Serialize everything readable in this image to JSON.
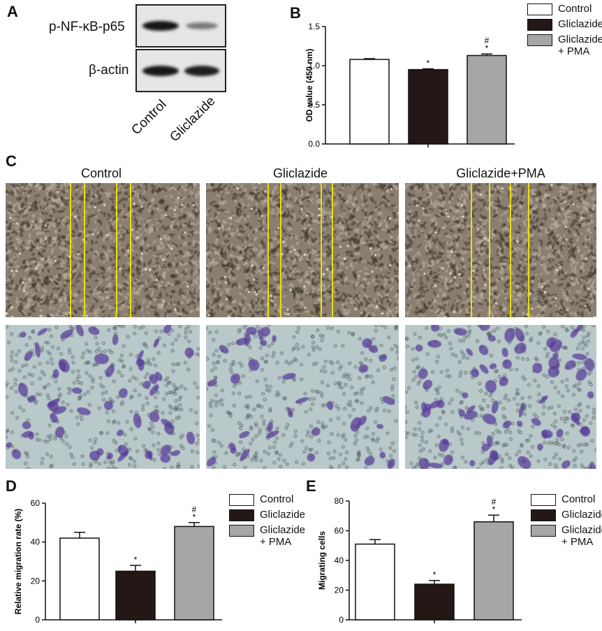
{
  "panels": {
    "a": {
      "letter": "A"
    },
    "b": {
      "letter": "B"
    },
    "c": {
      "letter": "C"
    },
    "d": {
      "letter": "D"
    },
    "e": {
      "letter": "E"
    }
  },
  "western_blot": {
    "rows": [
      "p-NF-κB-p65",
      "β-actin"
    ],
    "lanes": [
      "Control",
      "Gliclazide"
    ]
  },
  "micrographs": {
    "titles": [
      "Control",
      "Gliclazide",
      "Gliclazide+PMA"
    ],
    "colors": {
      "scratch": "#8a7e70",
      "scratch_line": "#e8e000",
      "transwell_bg": "#b9c9c9",
      "cell_stain": "#5a3e9a"
    }
  },
  "legend": {
    "items": [
      "Control",
      "Gliclazide",
      "Gliclazide\n+ PMA"
    ],
    "line1": [
      "Control",
      "Gliclazide",
      "Gliclazide"
    ],
    "line2": [
      "",
      "",
      "+ PMA"
    ],
    "colors": [
      "#ffffff",
      "#231815",
      "#a6a6a6"
    ]
  },
  "chart_data": [
    {
      "panel": "B",
      "type": "bar",
      "categories": [
        "Control",
        "Gliclazide",
        "Gliclazide + PMA"
      ],
      "values": [
        1.08,
        0.95,
        1.13
      ],
      "errors": [
        0.01,
        0.01,
        0.02
      ],
      "ylabel": "OD value (450 nm)",
      "ylim": [
        0,
        1.5
      ],
      "yticks": [
        "0.0",
        "0.5",
        "1.0",
        "1.5"
      ],
      "annotations": [
        "",
        "*",
        "#\n*"
      ]
    },
    {
      "panel": "D",
      "type": "bar",
      "categories": [
        "Control",
        "Gliclazide",
        "Gliclazide + PMA"
      ],
      "values": [
        42,
        25,
        48
      ],
      "errors": [
        3,
        3,
        2
      ],
      "ylabel": "Relative migration rate (%)",
      "ylim": [
        0,
        60
      ],
      "yticks": [
        "0",
        "20",
        "40",
        "60"
      ],
      "annotations": [
        "",
        "*",
        "#\n*"
      ]
    },
    {
      "panel": "E",
      "type": "bar",
      "categories": [
        "Control",
        "Gliclazide",
        "Gliclazide + PMA"
      ],
      "values": [
        51,
        24,
        66
      ],
      "errors": [
        3,
        2.5,
        4.5
      ],
      "ylabel": "Migrating cells",
      "ylim": [
        0,
        80
      ],
      "yticks": [
        "0",
        "20",
        "40",
        "60",
        "80"
      ],
      "annotations": [
        "",
        "*",
        "#\n*"
      ]
    }
  ]
}
